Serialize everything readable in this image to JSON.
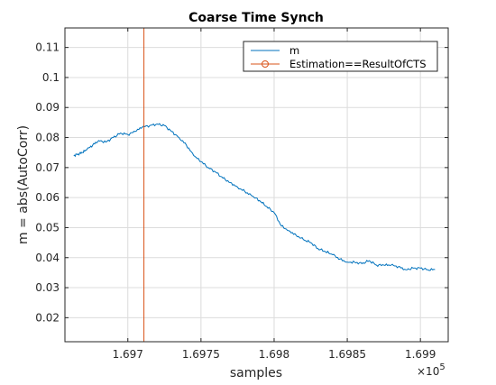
{
  "chart_data": {
    "type": "line",
    "title": "Coarse Time Synch",
    "xlabel": "samples",
    "ylabel": "m = abs(AutoCorr)",
    "x_exponent_label": "×10",
    "x_exponent_power": "5",
    "xlim": [
      169657,
      169919
    ],
    "ylim": [
      0.012,
      0.1165
    ],
    "x_ticks": [
      169700,
      169750,
      169800,
      169850,
      169900
    ],
    "x_tick_labels": [
      "1.697",
      "1.6975",
      "1.698",
      "1.6985",
      "1.699"
    ],
    "y_ticks": [
      0.02,
      0.03,
      0.04,
      0.05,
      0.06,
      0.07,
      0.08,
      0.09,
      0.1,
      0.11
    ],
    "y_tick_labels": [
      "0.02",
      "0.03",
      "0.04",
      "0.05",
      "0.06",
      "0.07",
      "0.08",
      "0.09",
      "0.1",
      "0.11"
    ],
    "grid": true,
    "legend_position": "top-right",
    "colors": {
      "m": "#0072bd",
      "estimation": "#d95319"
    },
    "series": [
      {
        "name": "m",
        "x": [
          169663,
          169666,
          169669,
          169672,
          169676,
          169680,
          169685,
          169690,
          169695,
          169700,
          169705,
          169710,
          169715,
          169720,
          169725,
          169730,
          169735,
          169740,
          169745,
          169750,
          169755,
          169760,
          169765,
          169770,
          169775,
          169780,
          169785,
          169790,
          169795,
          169800,
          169805,
          169810,
          169815,
          169820,
          169825,
          169830,
          169835,
          169840,
          169845,
          169850,
          169855,
          169860,
          169865,
          169870,
          169875,
          169880,
          169885,
          169890,
          169895,
          169900,
          169905,
          169910
        ],
        "y": [
          0.074,
          0.0745,
          0.075,
          0.076,
          0.0775,
          0.079,
          0.0785,
          0.08,
          0.0815,
          0.081,
          0.082,
          0.0835,
          0.084,
          0.0845,
          0.084,
          0.082,
          0.08,
          0.0775,
          0.074,
          0.072,
          0.07,
          0.0685,
          0.0665,
          0.065,
          0.0635,
          0.062,
          0.0605,
          0.059,
          0.057,
          0.055,
          0.0505,
          0.049,
          0.0475,
          0.046,
          0.045,
          0.043,
          0.042,
          0.041,
          0.0395,
          0.0385,
          0.0385,
          0.038,
          0.039,
          0.0375,
          0.0375,
          0.0375,
          0.037,
          0.036,
          0.0365,
          0.0365,
          0.036,
          0.036
        ]
      },
      {
        "name": "Estimation==ResultOfCTS",
        "x": [
          169711,
          169711
        ],
        "y": [
          0.012,
          0.1165
        ]
      }
    ]
  }
}
